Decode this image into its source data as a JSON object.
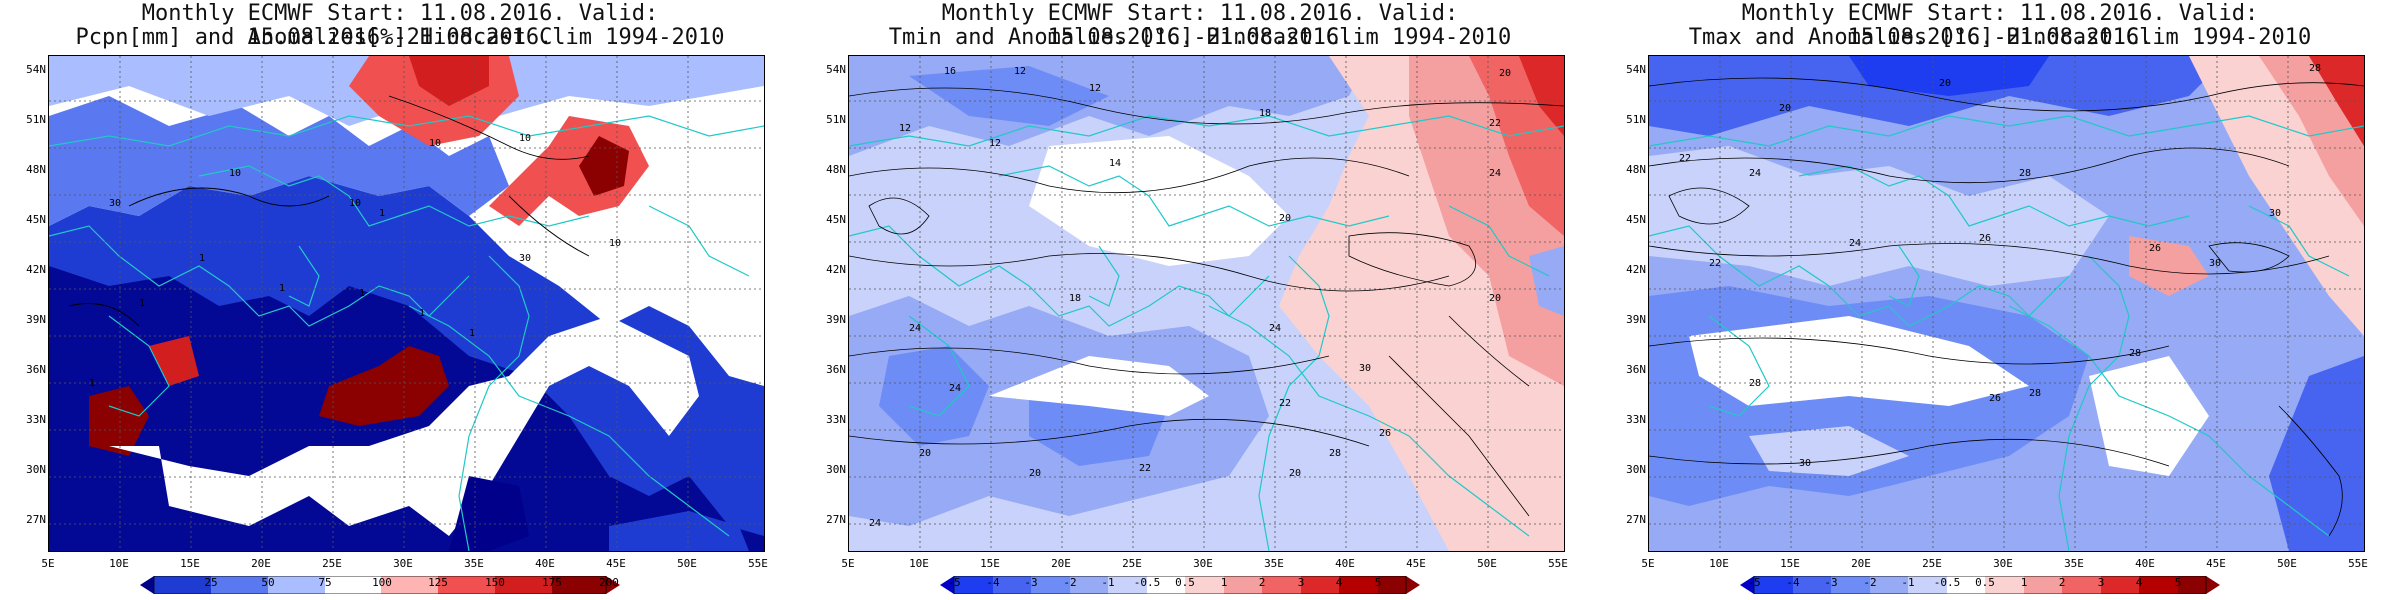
{
  "panels": [
    {
      "title_line1": "Monthly ECMWF Start: 11.08.2016. Valid: 15.08.2016.-21.08.2016.",
      "title_line2": "Pcpn[mm] and Anomalies[%] Hindcast Clim 1994-2010",
      "variable": "precipitation",
      "colorbar_labels": [
        "25",
        "50",
        "75",
        "100",
        "125",
        "150",
        "175",
        "200"
      ],
      "colorbar_colors": [
        "#00008b",
        "#1e3cd2",
        "#5a78f0",
        "#aabeff",
        "#ffffff",
        "#ffb4b4",
        "#f05050",
        "#d21e1e",
        "#8b0000"
      ],
      "contour_labels": [
        "10",
        "10",
        "10",
        "10",
        "30",
        "30",
        "10",
        "1",
        "1",
        "1",
        "1",
        "1",
        "1",
        "1",
        "1"
      ]
    },
    {
      "title_line1": "Monthly ECMWF Start: 11.08.2016. Valid: 15.08.2016.-21.08.2016.",
      "title_line2": "Tmin and Anomalies [°C] Hindcast Clim 1994-2010",
      "variable": "tmin",
      "colorbar_labels": [
        "-5",
        "-4",
        "-3",
        "-2",
        "-1",
        "-0.5",
        "0.5",
        "1",
        "2",
        "3",
        "4",
        "5"
      ],
      "colorbar_colors": [
        "#0000c8",
        "#1e3cf0",
        "#4664f0",
        "#6e8cf5",
        "#96aaf5",
        "#c8d2fa",
        "#ffffff",
        "#fad2d2",
        "#f5a0a0",
        "#f06464",
        "#dc2828",
        "#b40000",
        "#8b0000"
      ],
      "contour_labels": [
        "16",
        "12",
        "12",
        "12",
        "14",
        "16",
        "20",
        "22",
        "24",
        "18",
        "20",
        "24",
        "22",
        "20",
        "18",
        "16",
        "18",
        "20",
        "24",
        "22",
        "20",
        "30",
        "26",
        "28",
        "22"
      ]
    },
    {
      "title_line1": "Monthly ECMWF Start: 11.08.2016. Valid: 15.08.2016.-21.08.2016.",
      "title_line2": "Tmax and Anomalies [°C] Hindcast Clim 1994-2010",
      "variable": "tmax",
      "colorbar_labels": [
        "-5",
        "-4",
        "-3",
        "-2",
        "-1",
        "-0.5",
        "0.5",
        "1",
        "2",
        "3",
        "4",
        "5"
      ],
      "colorbar_colors": [
        "#0000c8",
        "#1e3cf0",
        "#4664f0",
        "#6e8cf5",
        "#96aaf5",
        "#c8d2fa",
        "#ffffff",
        "#fad2d2",
        "#f5a0a0",
        "#f06464",
        "#dc2828",
        "#b40000",
        "#8b0000"
      ],
      "contour_labels": [
        "20",
        "20",
        "22",
        "24",
        "28",
        "30",
        "24",
        "26",
        "22",
        "28",
        "30",
        "26",
        "28",
        "30",
        "24",
        "26",
        "28"
      ]
    }
  ],
  "axes": {
    "lat_labels": [
      "54N",
      "51N",
      "48N",
      "45N",
      "42N",
      "39N",
      "36N",
      "33N",
      "30N",
      "27N"
    ],
    "lon_labels": [
      "5E",
      "10E",
      "15E",
      "20E",
      "25E",
      "30E",
      "35E",
      "40E",
      "45E",
      "50E",
      "55E"
    ]
  }
}
